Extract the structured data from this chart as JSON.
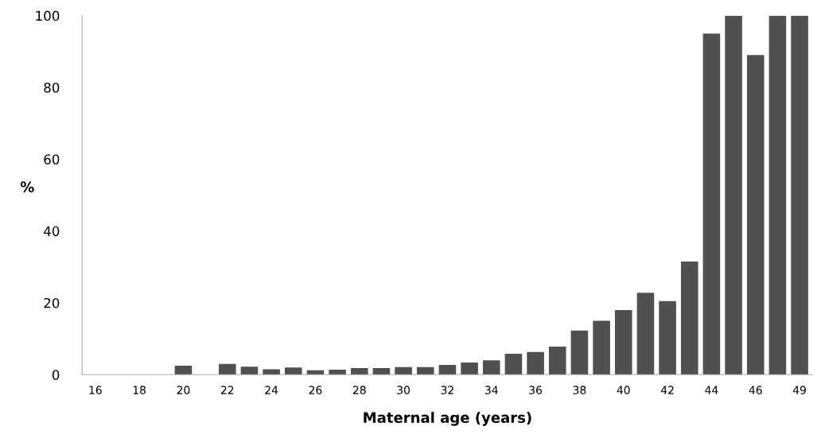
{
  "chart_data": {
    "type": "bar",
    "xlabel": "Maternal age (years)",
    "ylabel": "%",
    "categories": [
      "16",
      null,
      "18",
      null,
      "20",
      null,
      "22",
      null,
      "24",
      null,
      "26",
      null,
      "28",
      null,
      "30",
      null,
      "32",
      null,
      "34",
      null,
      "36",
      null,
      "38",
      null,
      "40",
      null,
      "42",
      null,
      "44",
      null,
      "46",
      null,
      "49"
    ],
    "values": [
      0,
      0,
      0,
      0,
      2.5,
      0,
      3,
      2.2,
      1.5,
      2,
      1.2,
      1.4,
      1.8,
      1.8,
      2.1,
      2.1,
      2.7,
      3.4,
      4,
      5.8,
      6.3,
      7.8,
      12.3,
      15,
      18,
      22.8,
      20.5,
      31.5,
      95,
      100,
      89,
      100,
      100
    ],
    "color": "#505050",
    "ylim": [
      0,
      100
    ],
    "yticks": [
      0,
      20,
      40,
      60,
      80,
      100
    ],
    "grid": false,
    "legend": false
  }
}
